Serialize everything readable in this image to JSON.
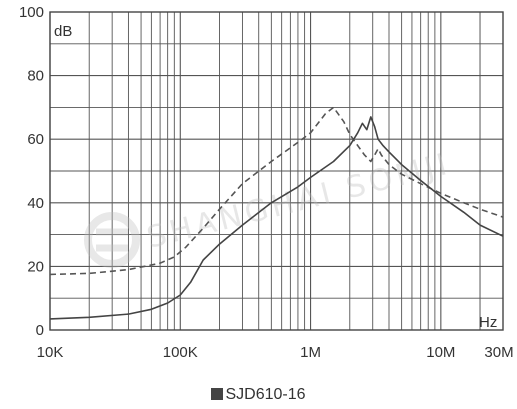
{
  "chart_data": {
    "type": "line",
    "title": "",
    "ylabel": "dB",
    "xlabel": "Hz",
    "x_scale": "log",
    "xlim": [
      10000,
      30000000
    ],
    "ylim": [
      0,
      100
    ],
    "y_ticks": [
      0,
      20,
      40,
      60,
      80,
      100
    ],
    "x_ticks": [
      {
        "value": 10000,
        "label": "10K"
      },
      {
        "value": 100000,
        "label": "100K"
      },
      {
        "value": 1000000,
        "label": "1M"
      },
      {
        "value": 10000000,
        "label": "10M"
      },
      {
        "value": 30000000,
        "label": "30M"
      }
    ],
    "grid": true,
    "legend_label": "SJD610-16",
    "legend_position": "bottom-center",
    "watermark": "SHANGHAI SOMJI",
    "series": [
      {
        "style": "dashed",
        "color": "#555555",
        "points": [
          [
            10000,
            17.5
          ],
          [
            20000,
            17.8
          ],
          [
            40000,
            19
          ],
          [
            70000,
            21
          ],
          [
            90000,
            23
          ],
          [
            110000,
            26
          ],
          [
            150000,
            32
          ],
          [
            200000,
            38
          ],
          [
            300000,
            46
          ],
          [
            500000,
            53
          ],
          [
            800000,
            59
          ],
          [
            1000000,
            62
          ],
          [
            1300000,
            68
          ],
          [
            1500000,
            70
          ],
          [
            1800000,
            65.5
          ],
          [
            2000000,
            61.5
          ],
          [
            2300000,
            58
          ],
          [
            2600000,
            55
          ],
          [
            2900000,
            53
          ],
          [
            3100000,
            55
          ],
          [
            3300000,
            57
          ],
          [
            3500000,
            55
          ],
          [
            4000000,
            52
          ],
          [
            5000000,
            49
          ],
          [
            7000000,
            46
          ],
          [
            10000000,
            43
          ],
          [
            15000000,
            40
          ],
          [
            20000000,
            38
          ],
          [
            30000000,
            35.5
          ]
        ]
      },
      {
        "style": "solid",
        "color": "#444444",
        "points": [
          [
            10000,
            3.5
          ],
          [
            20000,
            4
          ],
          [
            40000,
            5
          ],
          [
            60000,
            6.5
          ],
          [
            80000,
            8.5
          ],
          [
            100000,
            11
          ],
          [
            120000,
            15
          ],
          [
            150000,
            22
          ],
          [
            200000,
            27
          ],
          [
            300000,
            33
          ],
          [
            500000,
            40
          ],
          [
            800000,
            45
          ],
          [
            1000000,
            48
          ],
          [
            1500000,
            53
          ],
          [
            2000000,
            58
          ],
          [
            2300000,
            62
          ],
          [
            2500000,
            65
          ],
          [
            2700000,
            63
          ],
          [
            2900000,
            67
          ],
          [
            3100000,
            64
          ],
          [
            3300000,
            60
          ],
          [
            3600000,
            58
          ],
          [
            4000000,
            56
          ],
          [
            5000000,
            52
          ],
          [
            7000000,
            47
          ],
          [
            10000000,
            42
          ],
          [
            15000000,
            37
          ],
          [
            20000000,
            33
          ],
          [
            30000000,
            29.5
          ]
        ]
      }
    ]
  }
}
